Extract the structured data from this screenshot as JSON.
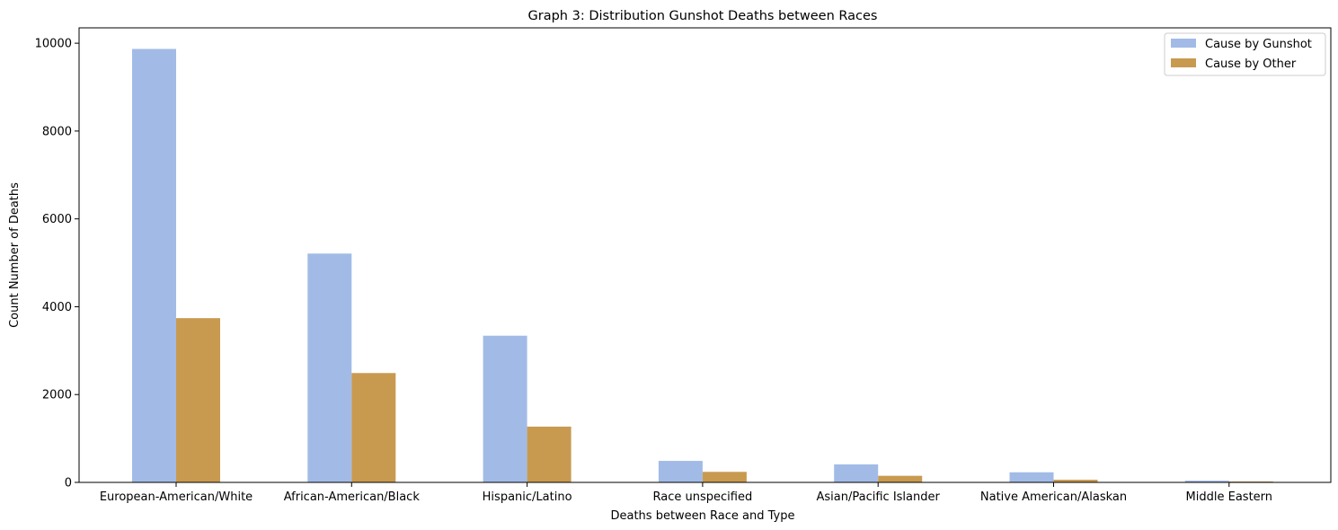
{
  "chart_data": {
    "type": "bar",
    "title": "Graph 3: Distribution Gunshot Deaths between Races",
    "xlabel": "Deaths between Race and Type",
    "ylabel": "Count Number of Deaths",
    "categories": [
      "European-American/White",
      "African-American/Black",
      "Hispanic/Latino",
      "Race unspecified",
      "Asian/Pacific Islander",
      "Native American/Alaskan",
      "Middle Eastern"
    ],
    "series": [
      {
        "name": "Cause by Gunshot",
        "color": "#a2bbe6",
        "values": [
          9870,
          5210,
          3340,
          490,
          410,
          230,
          40
        ]
      },
      {
        "name": "Cause by Other",
        "color": "#c89a50",
        "values": [
          3740,
          2490,
          1270,
          240,
          150,
          60,
          20
        ]
      }
    ],
    "ylim": [
      0,
      10350
    ],
    "yticks": [
      0,
      2000,
      4000,
      6000,
      8000,
      10000
    ],
    "grid": false,
    "legend": "top-right"
  }
}
